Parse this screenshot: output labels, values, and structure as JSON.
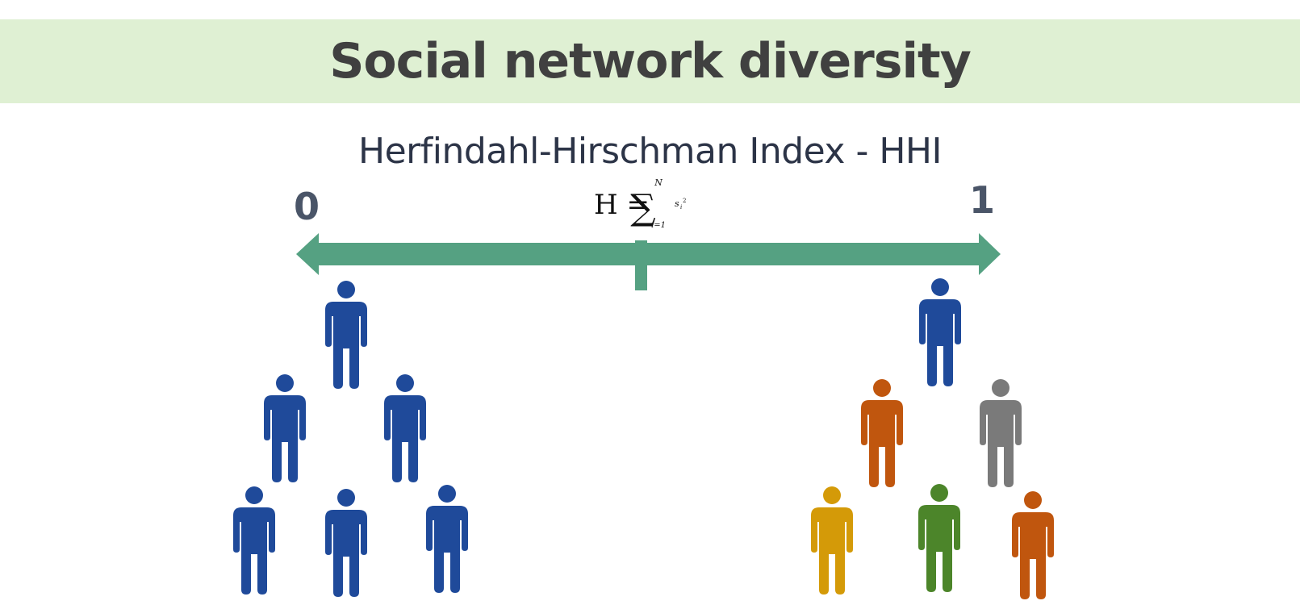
{
  "title": "Social network diversity",
  "index_name": "Herfindahl-Hirschman Index - HHI",
  "formula": {
    "lhs": "H =",
    "sum_symbol": "∑",
    "upper_limit": "N",
    "lower_limit": "i=1",
    "term": "s",
    "term_subscript": "i",
    "term_exponent": "2"
  },
  "scale": {
    "min_label": "0",
    "max_label": "1"
  },
  "colors": {
    "banner": "#dff0d3",
    "axis": "#55a182",
    "blue": "#1f4a9a",
    "orange": "#c0560e",
    "gray": "#7a7a7a",
    "yellow": "#d49a08",
    "green": "#4c852a"
  },
  "groups": {
    "left": {
      "people": [
        "blue",
        "blue",
        "blue",
        "blue",
        "blue",
        "blue"
      ]
    },
    "right": {
      "people": [
        "blue",
        "orange",
        "gray",
        "yellow",
        "green",
        "orange"
      ]
    }
  }
}
